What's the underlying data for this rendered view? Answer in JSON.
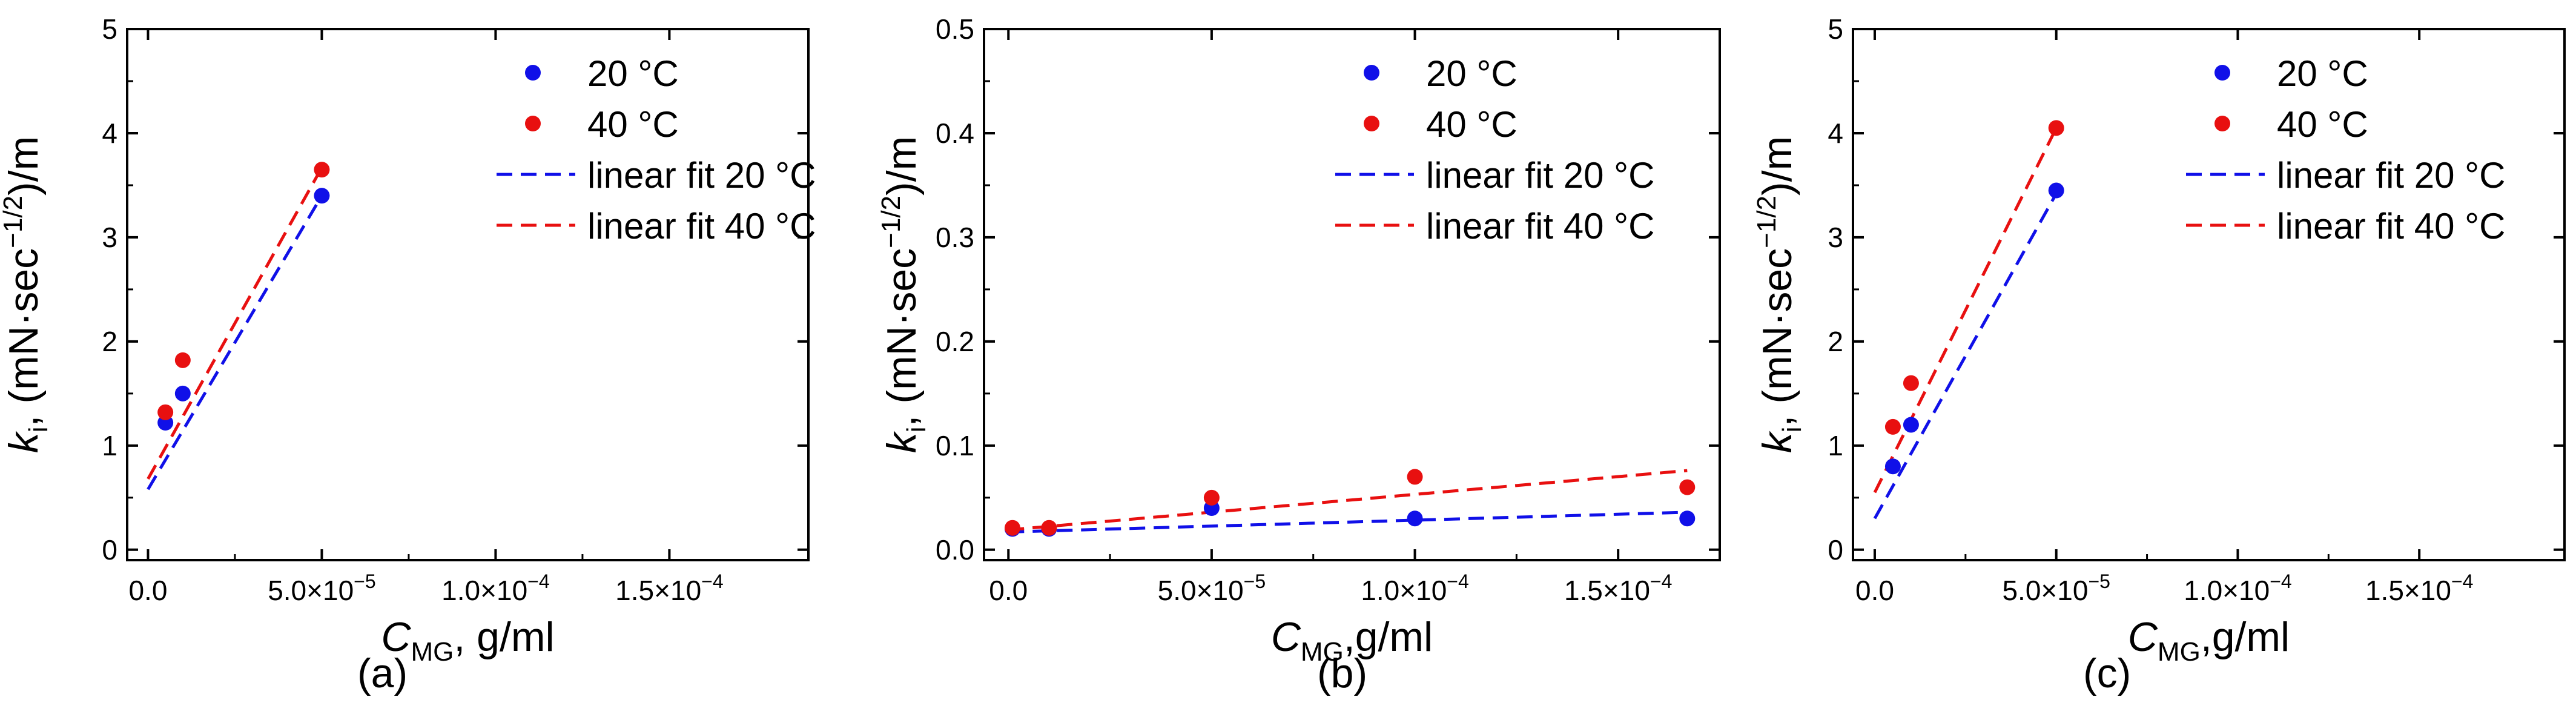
{
  "colors": {
    "series_20": "#1010e8",
    "series_40": "#e81010",
    "axis": "#000000"
  },
  "chart_data": [
    {
      "type": "scatter",
      "panel_label": "(a)",
      "xlabel": {
        "main": "C",
        "sub": "MG",
        "rest": ", g/ml"
      },
      "ylabel": {
        "k": "k",
        "sub": "i",
        "rest1": ", (mN·sec",
        "sup": "−1/2",
        "rest2": ")/m"
      },
      "xlim": [
        -6e-06,
        0.00019
      ],
      "ylim": [
        -0.1,
        5
      ],
      "xticks": [
        {
          "value": 0,
          "label": "0.0"
        },
        {
          "value": 5e-05,
          "label": "5.0×10",
          "exp": "−5"
        },
        {
          "value": 0.0001,
          "label": "1.0×10",
          "exp": "−4"
        },
        {
          "value": 0.00015,
          "label": "1.5×10",
          "exp": "−4"
        }
      ],
      "yticks": [
        {
          "value": 0,
          "label": "0"
        },
        {
          "value": 1,
          "label": "1"
        },
        {
          "value": 2,
          "label": "2"
        },
        {
          "value": 3,
          "label": "3"
        },
        {
          "value": 4,
          "label": "4"
        },
        {
          "value": 5,
          "label": "5"
        }
      ],
      "series": [
        {
          "name": "20 °C",
          "color": "#1010e8",
          "points": [
            [
              5e-06,
              1.22
            ],
            [
              1e-05,
              1.5
            ],
            [
              5e-05,
              3.4
            ]
          ]
        },
        {
          "name": "40 °C",
          "color": "#e81010",
          "points": [
            [
              5e-06,
              1.32
            ],
            [
              1e-05,
              1.82
            ],
            [
              5e-05,
              3.65
            ]
          ]
        }
      ],
      "fits": [
        {
          "name": "linear fit 20 °C",
          "color": "#1010e8",
          "from": [
            0,
            0.58
          ],
          "to": [
            5e-05,
            3.4
          ]
        },
        {
          "name": "linear fit 40 °C",
          "color": "#e81010",
          "from": [
            0,
            0.68
          ],
          "to": [
            5e-05,
            3.67
          ]
        }
      ]
    },
    {
      "type": "scatter",
      "panel_label": "(b)",
      "xlabel": {
        "main": "C",
        "sub": "MG",
        "rest": ",g/ml"
      },
      "ylabel": {
        "k": "k",
        "sub": "i",
        "rest1": ", (mN·sec",
        "sup": "−1/2",
        "rest2": ")/m"
      },
      "xlim": [
        -6e-06,
        0.000175
      ],
      "ylim": [
        -0.01,
        0.5
      ],
      "xticks": [
        {
          "value": 0,
          "label": "0.0"
        },
        {
          "value": 5e-05,
          "label": "5.0×10",
          "exp": "−5"
        },
        {
          "value": 0.0001,
          "label": "1.0×10",
          "exp": "−4"
        },
        {
          "value": 0.00015,
          "label": "1.5×10",
          "exp": "−4"
        }
      ],
      "yticks": [
        {
          "value": 0,
          "label": "0.0"
        },
        {
          "value": 0.1,
          "label": "0.1"
        },
        {
          "value": 0.2,
          "label": "0.2"
        },
        {
          "value": 0.3,
          "label": "0.3"
        },
        {
          "value": 0.4,
          "label": "0.4"
        },
        {
          "value": 0.5,
          "label": "0.5"
        }
      ],
      "series": [
        {
          "name": "20 °C",
          "color": "#1010e8",
          "points": [
            [
              1e-06,
              0.02
            ],
            [
              1e-05,
              0.02
            ],
            [
              5e-05,
              0.04
            ],
            [
              0.0001,
              0.03
            ],
            [
              0.000167,
              0.03
            ]
          ]
        },
        {
          "name": "40 °C",
          "color": "#e81010",
          "points": [
            [
              1e-06,
              0.021
            ],
            [
              1e-05,
              0.021
            ],
            [
              5e-05,
              0.05
            ],
            [
              0.0001,
              0.07
            ],
            [
              0.000167,
              0.06
            ]
          ]
        }
      ],
      "fits": [
        {
          "name": "linear fit 20 °C",
          "color": "#1010e8",
          "from": [
            0,
            0.017
          ],
          "to": [
            0.000167,
            0.036
          ]
        },
        {
          "name": "linear fit 40 °C",
          "color": "#e81010",
          "from": [
            0,
            0.019
          ],
          "to": [
            0.000167,
            0.076
          ]
        }
      ]
    },
    {
      "type": "scatter",
      "panel_label": "(c)",
      "xlabel": {
        "main": "C",
        "sub": "MG",
        "rest": ",g/ml"
      },
      "ylabel": {
        "k": "k",
        "sub": "i",
        "rest1": ", (mN·sec",
        "sup": "−1/2",
        "rest2": ")/m"
      },
      "xlim": [
        -6e-06,
        0.00019
      ],
      "ylim": [
        -0.1,
        5
      ],
      "xticks": [
        {
          "value": 0,
          "label": "0.0"
        },
        {
          "value": 5e-05,
          "label": "5.0×10",
          "exp": "−5"
        },
        {
          "value": 0.0001,
          "label": "1.0×10",
          "exp": "−4"
        },
        {
          "value": 0.00015,
          "label": "1.5×10",
          "exp": "−4"
        }
      ],
      "yticks": [
        {
          "value": 0,
          "label": "0"
        },
        {
          "value": 1,
          "label": "1"
        },
        {
          "value": 2,
          "label": "2"
        },
        {
          "value": 3,
          "label": "3"
        },
        {
          "value": 4,
          "label": "4"
        },
        {
          "value": 5,
          "label": "5"
        }
      ],
      "series": [
        {
          "name": "20 °C",
          "color": "#1010e8",
          "points": [
            [
              5e-06,
              0.8
            ],
            [
              1e-05,
              1.2
            ],
            [
              5e-05,
              3.45
            ]
          ]
        },
        {
          "name": "40 °C",
          "color": "#e81010",
          "points": [
            [
              5e-06,
              1.18
            ],
            [
              1e-05,
              1.6
            ],
            [
              5e-05,
              4.05
            ]
          ]
        }
      ],
      "fits": [
        {
          "name": "linear fit 20 °C",
          "color": "#1010e8",
          "from": [
            0,
            0.3
          ],
          "to": [
            5e-05,
            3.42
          ]
        },
        {
          "name": "linear fit 40 °C",
          "color": "#e81010",
          "from": [
            0,
            0.55
          ],
          "to": [
            5e-05,
            4.05
          ]
        }
      ]
    }
  ]
}
